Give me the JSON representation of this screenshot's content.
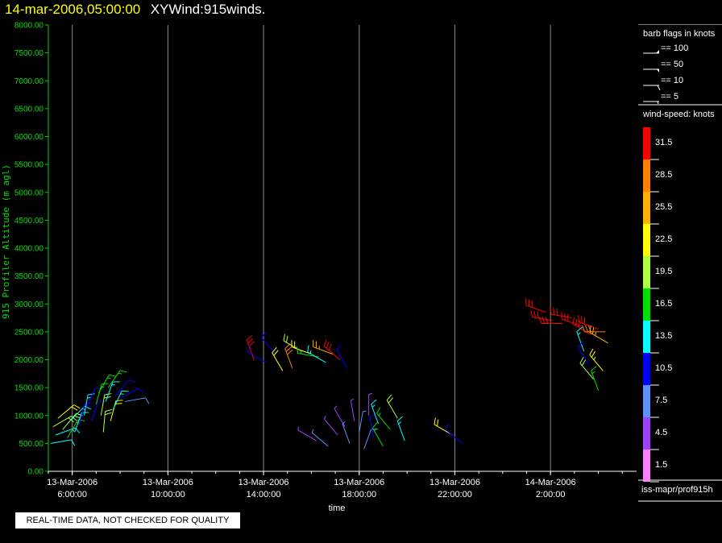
{
  "header": {
    "date": "14-mar-2006,05:00:00",
    "name": "XYWind:915winds."
  },
  "legend": {
    "barb_title": "barb flags in knots",
    "barb_items": [
      "== 100",
      "== 50",
      "== 10",
      "== 5"
    ],
    "speed_title": "wind-speed: knots",
    "speed_bins": [
      {
        "label": "31.5",
        "color": "#ff0000"
      },
      {
        "label": "28.5",
        "color": "#ff8000"
      },
      {
        "label": "25.5",
        "color": "#ffb000"
      },
      {
        "label": "22.5",
        "color": "#ffff00"
      },
      {
        "label": "19.5",
        "color": "#b0ff40"
      },
      {
        "label": "16.5",
        "color": "#00e000"
      },
      {
        "label": "13.5",
        "color": "#00ffff"
      },
      {
        "label": "10.5",
        "color": "#0000ff"
      },
      {
        "label": "7.5",
        "color": "#6090ff"
      },
      {
        "label": "4.5",
        "color": "#a040ff"
      },
      {
        "label": "1.5",
        "color": "#ff80ff"
      }
    ],
    "source": "iss-mapr/prof915h"
  },
  "footer": {
    "note": "REAL-TIME DATA, NOT CHECKED FOR QUALITY"
  },
  "chart_data": {
    "type": "scatter",
    "ylabel": "915 Profiler Altitude (m agl)",
    "xlabel": "time",
    "ylim": [
      0,
      8000
    ],
    "y_ticks": [
      "0.00",
      "500.00",
      "1000.00",
      "1500.00",
      "2000.00",
      "2500.00",
      "3000.00",
      "3500.00",
      "4000.00",
      "4500.00",
      "5000.00",
      "5500.00",
      "6000.00",
      "6500.00",
      "7000.00",
      "7500.00",
      "8000.00"
    ],
    "x_range_hours": [
      5.0,
      29.6
    ],
    "x_ticks": [
      {
        "hour": 6,
        "date": "13-Mar-2006",
        "time": "6:00:00"
      },
      {
        "hour": 10,
        "date": "13-Mar-2006",
        "time": "10:00:00"
      },
      {
        "hour": 14,
        "date": "13-Mar-2006",
        "time": "14:00:00"
      },
      {
        "hour": 18,
        "date": "13-Mar-2006",
        "time": "18:00:00"
      },
      {
        "hour": 22,
        "date": "13-Mar-2006",
        "time": "22:00:00"
      },
      {
        "hour": 26,
        "date": "14-Mar-2006",
        "time": "2:00:00"
      }
    ],
    "grid": "vertical",
    "barbs": [
      {
        "t": 5.1,
        "alt": 500,
        "dir": 80,
        "spd": 12
      },
      {
        "t": 5.3,
        "alt": 650,
        "dir": 70,
        "spd": 14
      },
      {
        "t": 5.2,
        "alt": 800,
        "dir": 60,
        "spd": 20
      },
      {
        "t": 5.4,
        "alt": 950,
        "dir": 50,
        "spd": 22
      },
      {
        "t": 5.6,
        "alt": 750,
        "dir": 40,
        "spd": 18
      },
      {
        "t": 5.8,
        "alt": 600,
        "dir": 30,
        "spd": 16
      },
      {
        "t": 5.9,
        "alt": 900,
        "dir": 45,
        "spd": 14
      },
      {
        "t": 6.1,
        "alt": 700,
        "dir": 20,
        "spd": 12
      },
      {
        "t": 6.3,
        "alt": 850,
        "dir": 15,
        "spd": 11
      },
      {
        "t": 6.5,
        "alt": 1000,
        "dir": 10,
        "spd": 13
      },
      {
        "t": 6.6,
        "alt": 1150,
        "dir": 25,
        "spd": 10
      },
      {
        "t": 6.8,
        "alt": 900,
        "dir": 20,
        "spd": 9
      },
      {
        "t": 7.0,
        "alt": 1200,
        "dir": 15,
        "spd": 16
      },
      {
        "t": 7.1,
        "alt": 1400,
        "dir": 30,
        "spd": 17
      },
      {
        "t": 7.2,
        "alt": 1000,
        "dir": 10,
        "spd": 19
      },
      {
        "t": 7.3,
        "alt": 700,
        "dir": 5,
        "spd": 18
      },
      {
        "t": 7.4,
        "alt": 1250,
        "dir": 20,
        "spd": 14
      },
      {
        "t": 7.5,
        "alt": 1500,
        "dir": 35,
        "spd": 16
      },
      {
        "t": 7.6,
        "alt": 900,
        "dir": 15,
        "spd": 21
      },
      {
        "t": 7.7,
        "alt": 1100,
        "dir": 25,
        "spd": 13
      },
      {
        "t": 7.8,
        "alt": 1350,
        "dir": 40,
        "spd": 11
      },
      {
        "t": 8.0,
        "alt": 1300,
        "dir": 60,
        "spd": 9
      },
      {
        "t": 8.2,
        "alt": 1250,
        "dir": 80,
        "spd": 8
      },
      {
        "t": 13.6,
        "alt": 2000,
        "dir": 340,
        "spd": 31
      },
      {
        "t": 14.1,
        "alt": 1950,
        "dir": 300,
        "spd": 10
      },
      {
        "t": 14.5,
        "alt": 2100,
        "dir": 320,
        "spd": 11
      },
      {
        "t": 14.8,
        "alt": 1800,
        "dir": 330,
        "spd": 22
      },
      {
        "t": 15.2,
        "alt": 1850,
        "dir": 340,
        "spd": 28
      },
      {
        "t": 15.6,
        "alt": 2150,
        "dir": 300,
        "spd": 18
      },
      {
        "t": 16.0,
        "alt": 2100,
        "dir": 290,
        "spd": 22
      },
      {
        "t": 16.3,
        "alt": 2050,
        "dir": 280,
        "spd": 15
      },
      {
        "t": 16.6,
        "alt": 1950,
        "dir": 300,
        "spd": 13
      },
      {
        "t": 16.9,
        "alt": 2100,
        "dir": 290,
        "spd": 26
      },
      {
        "t": 17.2,
        "alt": 2000,
        "dir": 310,
        "spd": 31
      },
      {
        "t": 17.5,
        "alt": 1850,
        "dir": 330,
        "spd": 9
      },
      {
        "t": 16.2,
        "alt": 550,
        "dir": 300,
        "spd": 5
      },
      {
        "t": 16.7,
        "alt": 450,
        "dir": 310,
        "spd": 6
      },
      {
        "t": 17.1,
        "alt": 650,
        "dir": 320,
        "spd": 4
      },
      {
        "t": 17.4,
        "alt": 800,
        "dir": 330,
        "spd": 5
      },
      {
        "t": 17.6,
        "alt": 500,
        "dir": 340,
        "spd": 7
      },
      {
        "t": 17.8,
        "alt": 900,
        "dir": 350,
        "spd": 4
      },
      {
        "t": 18.0,
        "alt": 700,
        "dir": 10,
        "spd": 6
      },
      {
        "t": 18.2,
        "alt": 400,
        "dir": 20,
        "spd": 8
      },
      {
        "t": 18.4,
        "alt": 1000,
        "dir": 0,
        "spd": 5
      },
      {
        "t": 18.6,
        "alt": 600,
        "dir": 350,
        "spd": 10
      },
      {
        "t": 18.8,
        "alt": 850,
        "dir": 340,
        "spd": 13
      },
      {
        "t": 19.0,
        "alt": 450,
        "dir": 330,
        "spd": 15
      },
      {
        "t": 19.3,
        "alt": 750,
        "dir": 320,
        "spd": 17
      },
      {
        "t": 19.6,
        "alt": 950,
        "dir": 330,
        "spd": 19
      },
      {
        "t": 19.9,
        "alt": 550,
        "dir": 340,
        "spd": 14
      },
      {
        "t": 21.9,
        "alt": 650,
        "dir": 300,
        "spd": 22
      },
      {
        "t": 22.3,
        "alt": 500,
        "dir": 310,
        "spd": 10
      },
      {
        "t": 25.8,
        "alt": 2850,
        "dir": 290,
        "spd": 31
      },
      {
        "t": 26.1,
        "alt": 2700,
        "dir": 280,
        "spd": 32
      },
      {
        "t": 26.5,
        "alt": 2650,
        "dir": 270,
        "spd": 31
      },
      {
        "t": 26.9,
        "alt": 2750,
        "dir": 280,
        "spd": 31
      },
      {
        "t": 27.3,
        "alt": 2600,
        "dir": 290,
        "spd": 30
      },
      {
        "t": 27.7,
        "alt": 2450,
        "dir": 300,
        "spd": 31
      },
      {
        "t": 28.0,
        "alt": 2550,
        "dir": 290,
        "spd": 31
      },
      {
        "t": 28.3,
        "alt": 2500,
        "dir": 270,
        "spd": 29
      },
      {
        "t": 27.4,
        "alt": 2150,
        "dir": 340,
        "spd": 13
      },
      {
        "t": 27.6,
        "alt": 1900,
        "dir": 330,
        "spd": 10
      },
      {
        "t": 27.8,
        "alt": 1650,
        "dir": 320,
        "spd": 18
      },
      {
        "t": 28.0,
        "alt": 1450,
        "dir": 340,
        "spd": 16
      },
      {
        "t": 28.2,
        "alt": 1800,
        "dir": 320,
        "spd": 23
      },
      {
        "t": 28.4,
        "alt": 2300,
        "dir": 300,
        "spd": 25
      }
    ]
  }
}
